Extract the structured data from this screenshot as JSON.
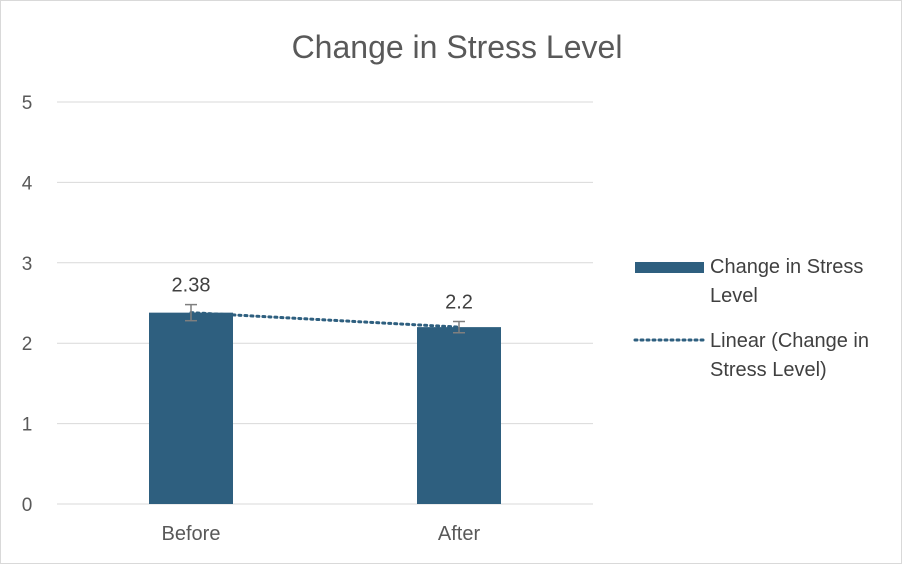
{
  "chart_data": {
    "type": "bar",
    "title": "Change in Stress Level",
    "xlabel": "",
    "ylabel": "",
    "categories": [
      "Before",
      "After"
    ],
    "series": [
      {
        "name": "Change in Stress Level",
        "values": [
          2.38,
          2.2
        ],
        "error": [
          0.1,
          0.07
        ],
        "color": "#2e5f7f",
        "data_labels": [
          "2.38",
          "2.2"
        ]
      }
    ],
    "trendline": {
      "name": "Linear (Change in Stress Level)",
      "type": "linear",
      "style": "dotted",
      "color": "#2e5f7f"
    },
    "ylim": [
      0,
      5
    ],
    "yticks": [
      "0",
      "1",
      "2",
      "3",
      "4",
      "5"
    ],
    "grid": true,
    "legend_position": "right",
    "legend": {
      "bar_lines": [
        "Change in Stress",
        "Level"
      ],
      "trend_lines": [
        "Linear (Change in",
        "Stress Level)"
      ]
    }
  }
}
